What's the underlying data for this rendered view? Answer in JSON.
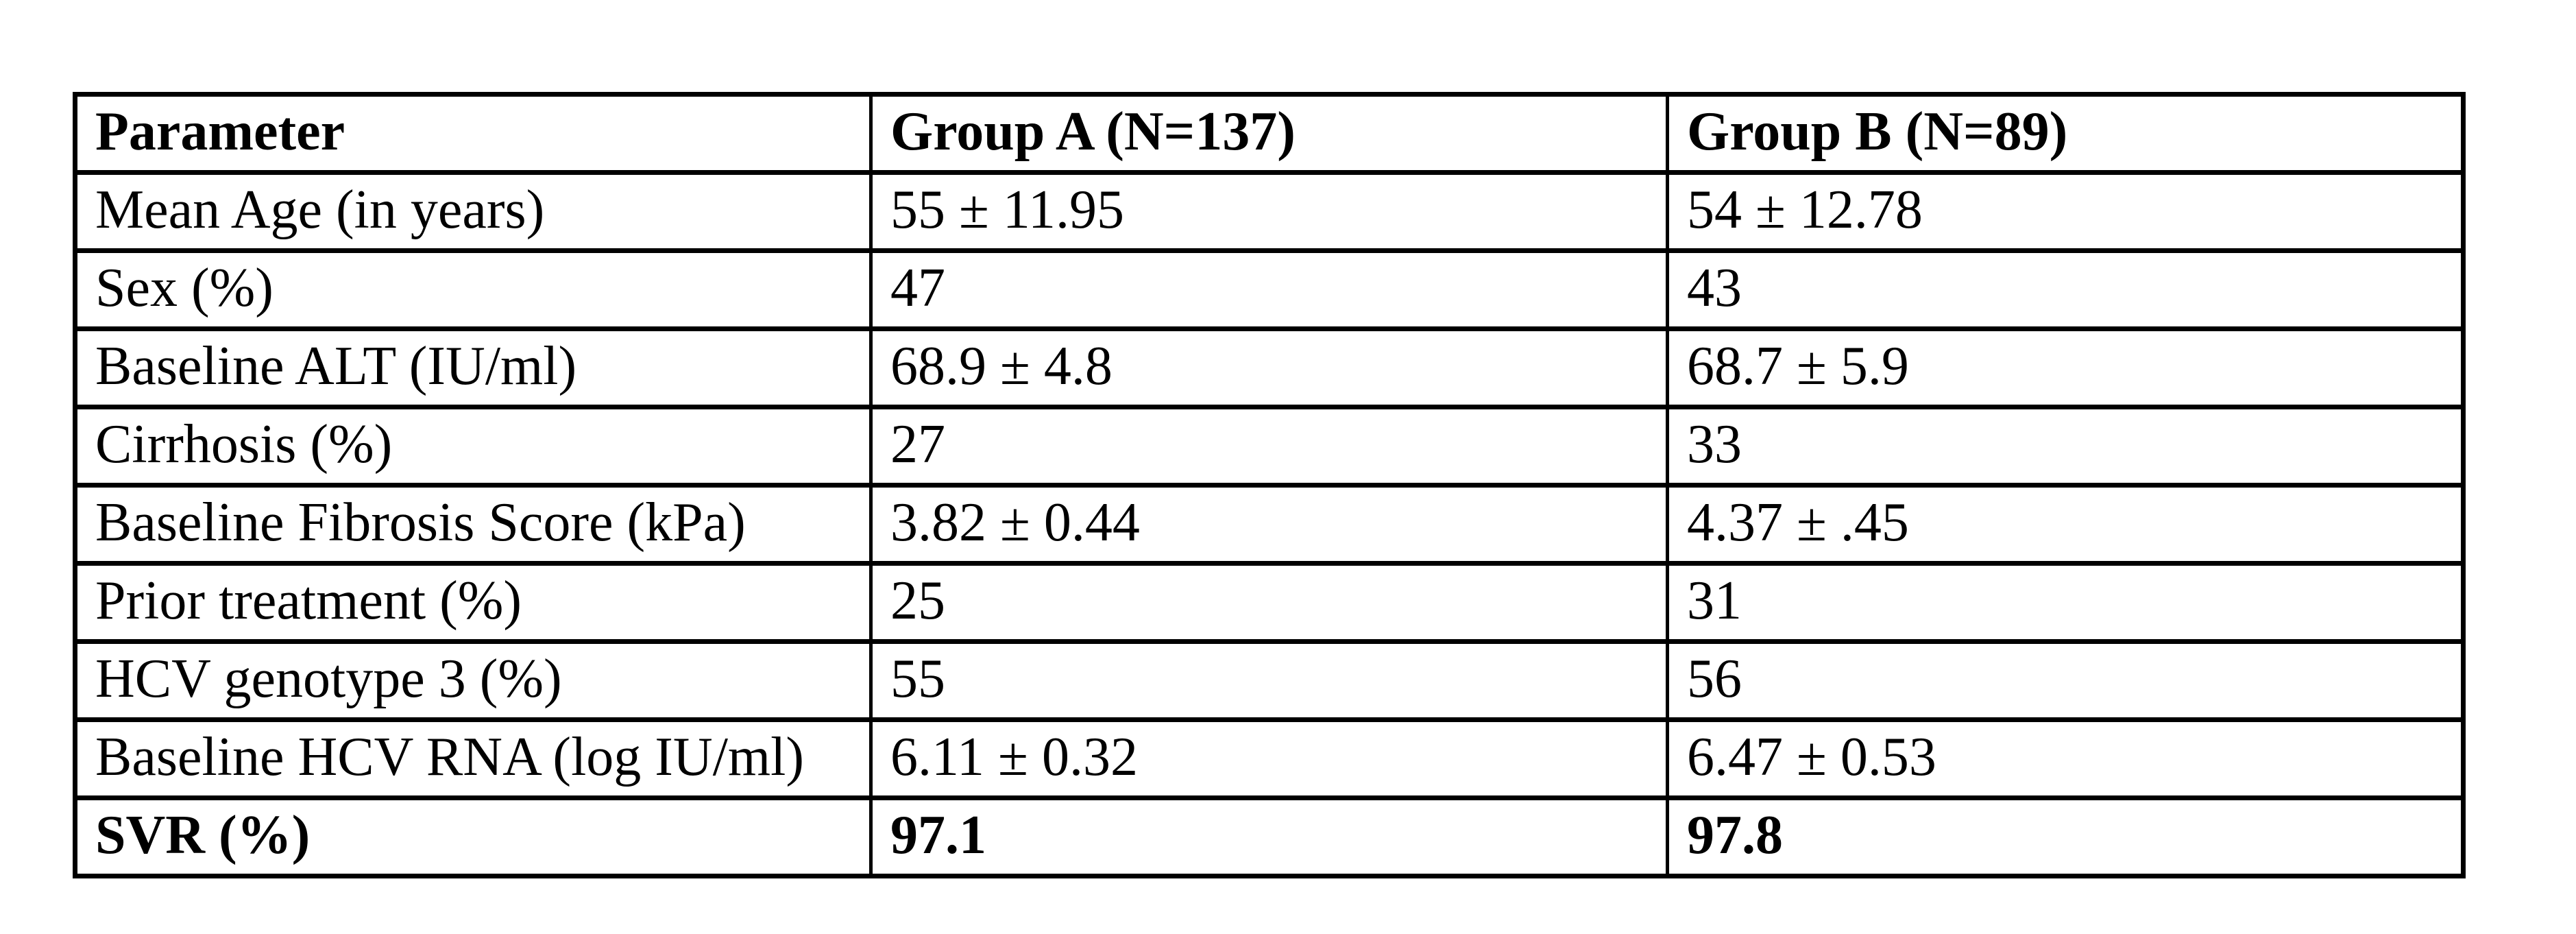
{
  "page": {
    "background_color": "#ffffff",
    "text_color": "#000000",
    "border_color": "#000000"
  },
  "table": {
    "columns": [
      {
        "label": "Parameter"
      },
      {
        "label": "Group A (N=137)"
      },
      {
        "label": "Group B (N=89)"
      }
    ],
    "rows": [
      {
        "parameter": "Mean Age (in years)",
        "group_a": "55 ± 11.95",
        "group_b": "54 ± 12.78"
      },
      {
        "parameter": "Sex (%)",
        "group_a": "47",
        "group_b": "43"
      },
      {
        "parameter": "Baseline ALT (IU/ml)",
        "group_a": "68.9 ± 4.8",
        "group_b": "68.7 ± 5.9"
      },
      {
        "parameter": "Cirrhosis (%)",
        "group_a": "27",
        "group_b": "33"
      },
      {
        "parameter": "Baseline Fibrosis Score (kPa)",
        "group_a": "3.82 ± 0.44",
        "group_b": "4.37 ± .45"
      },
      {
        "parameter": "Prior treatment (%)",
        "group_a": "25",
        "group_b": "31"
      },
      {
        "parameter": "HCV genotype 3 (%)",
        "group_a": "55",
        "group_b": "56"
      },
      {
        "parameter": "Baseline HCV RNA (log IU/ml)",
        "group_a": "6.11 ± 0.32",
        "group_b": "6.47 ± 0.53"
      },
      {
        "parameter": "SVR (%)",
        "group_a": "97.1",
        "group_b": "97.8",
        "emphasis": "bold"
      }
    ]
  }
}
